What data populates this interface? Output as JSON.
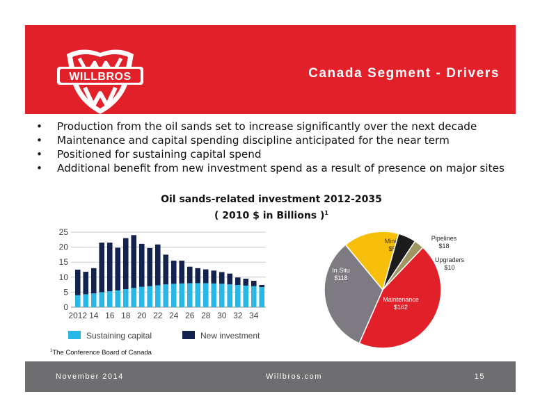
{
  "header": {
    "title": "Canada Segment - Drivers",
    "logo_text": "WILLBROS",
    "colors": {
      "band": "#e2202a",
      "logo_text": "#ffffff"
    }
  },
  "bullets": [
    "Production from the oil sands set to increase significantly over the next decade",
    "Maintenance and capital spending discipline anticipated for the near term",
    "Positioned for sustaining capital spend",
    "Additional benefit from new investment spend as a result of presence on major sites"
  ],
  "chart_heading": {
    "line1": "Oil sands-related investment 2012-2035",
    "line2": "( 2010 $ in Billions )",
    "footnote_marker": "1"
  },
  "chart_data": [
    {
      "type": "bar",
      "stacked": true,
      "categories": [
        2012,
        2013,
        2014,
        2015,
        2016,
        2017,
        2018,
        2019,
        2020,
        2021,
        2022,
        2023,
        2024,
        2025,
        2026,
        2027,
        2028,
        2029,
        2030,
        2031,
        2032,
        2033,
        2034,
        2035
      ],
      "tick_labels": [
        "2012",
        "14",
        "16",
        "18",
        "20",
        "22",
        "24",
        "26",
        "28",
        "30",
        "32",
        "34"
      ],
      "y_ticks": [
        "0",
        "5",
        "10",
        "15",
        "20",
        "25"
      ],
      "ylim": [
        0,
        25
      ],
      "grid": true,
      "series": [
        {
          "name": "Sustaining capital",
          "color": "#29b8e5",
          "values": [
            4,
            4.3,
            4.6,
            5,
            5.3,
            5.6,
            6,
            6.4,
            6.8,
            7,
            7.3,
            7.6,
            7.8,
            7.9,
            8,
            8,
            8,
            7.9,
            7.8,
            7.6,
            7.4,
            7.2,
            7,
            6.7
          ]
        },
        {
          "name": "New investment",
          "color": "#13234d",
          "values": [
            8.5,
            7.5,
            8.4,
            16.5,
            16.2,
            14.2,
            17,
            17.6,
            14.3,
            12.7,
            13.6,
            9.9,
            7.7,
            7.6,
            5.5,
            5,
            4.6,
            4.3,
            3.9,
            3.6,
            2.5,
            2.3,
            1.8,
            0.7
          ]
        }
      ],
      "legend_position": "bottom"
    },
    {
      "type": "pie",
      "slices": [
        {
          "label": "Mining",
          "value_label": "$56",
          "value": 56,
          "color": "#f7bf0a"
        },
        {
          "label": "Pipelines",
          "value_label": "$18",
          "value": 18,
          "color": "#1c1c1c"
        },
        {
          "label": "Upgraders",
          "value_label": "$10",
          "value": 10,
          "color": "#a09661"
        },
        {
          "label": "Maintenance",
          "value_label": "$162",
          "value": 162,
          "color": "#e2202a"
        },
        {
          "label": "In Situ",
          "value_label": "$118",
          "value": 118,
          "color": "#7d7a81"
        }
      ]
    }
  ],
  "source": {
    "marker": "1",
    "text": "The Conference Board of Canada"
  },
  "footer": {
    "date": "November 2014",
    "site": "Willbros.com",
    "page": "15"
  }
}
